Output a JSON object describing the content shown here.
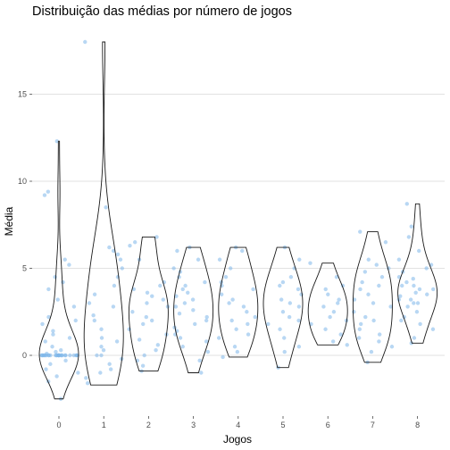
{
  "chart_data": {
    "type": "violin",
    "title": "Distribuição das médias por número de jogos",
    "xlabel": "Jogos",
    "ylabel": "Média",
    "categories": [
      "0",
      "1",
      "2",
      "3",
      "4",
      "5",
      "6",
      "7",
      "8"
    ],
    "y_ticks": [
      0,
      5,
      10,
      15
    ],
    "ylim": [
      -3.5,
      18.5
    ],
    "grid": "horizontal-major",
    "legend": "none",
    "point_color": "#7db7ea",
    "series": [
      {
        "category": "0",
        "range": [
          -2.5,
          12.3
        ],
        "points": [
          0,
          0,
          0,
          0,
          0,
          0,
          0,
          0,
          0,
          0,
          0,
          0,
          0,
          0,
          0,
          0,
          0,
          0,
          0,
          0,
          0,
          0,
          0,
          0,
          0,
          0,
          0,
          0.1,
          0.2,
          0.3,
          -0.3,
          -0.5,
          -0.8,
          -1.0,
          -1.2,
          -1.5,
          -2.5,
          0.5,
          0.8,
          1.0,
          1.2,
          1.4,
          1.8,
          2.0,
          2.2,
          2.8,
          3.2,
          3.8,
          4.2,
          4.5,
          5.2,
          5.5,
          9.2,
          9.4,
          12.3
        ]
      },
      {
        "category": "1",
        "range": [
          -1.7,
          18.0
        ],
        "points": [
          -1.6,
          -1.3,
          -1.0,
          -0.8,
          -0.5,
          -0.2,
          0,
          0,
          0.3,
          0.5,
          0.8,
          1.0,
          1.5,
          2.0,
          2.3,
          2.8,
          3.0,
          3.5,
          4.0,
          4.5,
          5.0,
          5.5,
          5.8,
          6.0,
          6.2,
          8.5,
          18.0
        ]
      },
      {
        "category": "2",
        "range": [
          -0.9,
          6.8
        ],
        "points": [
          -0.9,
          -0.6,
          -0.3,
          0,
          0.3,
          0.6,
          0.9,
          1.2,
          1.5,
          1.8,
          2.0,
          2.2,
          2.5,
          2.8,
          3.0,
          3.2,
          3.4,
          3.6,
          3.8,
          4.0,
          4.2,
          5.5,
          6.3,
          6.5,
          6.8
        ]
      },
      {
        "category": "3",
        "range": [
          -1.0,
          6.2
        ],
        "points": [
          -1.0,
          -0.3,
          0.2,
          0.5,
          0.8,
          1.0,
          1.2,
          1.4,
          1.6,
          1.8,
          2.0,
          2.2,
          2.4,
          2.6,
          2.8,
          3.0,
          3.2,
          3.4,
          3.6,
          3.8,
          4.0,
          4.2,
          4.5,
          4.8,
          5.0,
          5.5,
          6.0,
          6.2
        ]
      },
      {
        "category": "4",
        "range": [
          -0.1,
          6.2
        ],
        "points": [
          -0.1,
          0.2,
          0.5,
          1.0,
          1.2,
          1.5,
          1.8,
          2.0,
          2.2,
          2.5,
          2.8,
          3.0,
          3.2,
          3.5,
          3.8,
          4.0,
          4.2,
          4.5,
          5.0,
          5.5,
          6.0,
          6.2
        ]
      },
      {
        "category": "5",
        "range": [
          -0.7,
          6.2
        ],
        "points": [
          -0.7,
          0.2,
          0.5,
          1.0,
          1.5,
          1.8,
          2.0,
          2.2,
          2.5,
          2.8,
          3.0,
          3.2,
          3.5,
          3.8,
          4.0,
          4.2,
          4.5,
          5.0,
          5.5,
          6.2
        ]
      },
      {
        "category": "6",
        "range": [
          0.6,
          5.3
        ],
        "points": [
          0.6,
          0.8,
          1.2,
          1.5,
          1.8,
          2.0,
          2.2,
          2.5,
          2.8,
          3.0,
          3.2,
          3.5,
          3.8,
          4.0,
          4.5,
          5.3
        ]
      },
      {
        "category": "7",
        "range": [
          -0.4,
          7.1
        ],
        "points": [
          -0.4,
          0.2,
          0.5,
          0.8,
          1.0,
          1.2,
          1.5,
          1.8,
          2.0,
          2.2,
          2.5,
          2.8,
          3.0,
          3.2,
          3.5,
          3.8,
          4.0,
          4.2,
          4.5,
          4.8,
          5.0,
          5.2,
          5.5,
          6.5,
          7.1
        ]
      },
      {
        "category": "8",
        "range": [
          0.7,
          8.7
        ],
        "points": [
          0.7,
          1.0,
          1.5,
          1.8,
          2.0,
          2.2,
          2.5,
          2.8,
          3.0,
          3.0,
          3.2,
          3.2,
          3.4,
          3.5,
          3.6,
          3.8,
          3.8,
          4.0,
          4.0,
          4.2,
          4.4,
          4.5,
          4.8,
          5.0,
          5.2,
          5.5,
          6.0,
          6.8,
          7.4,
          8.7
        ]
      }
    ]
  }
}
